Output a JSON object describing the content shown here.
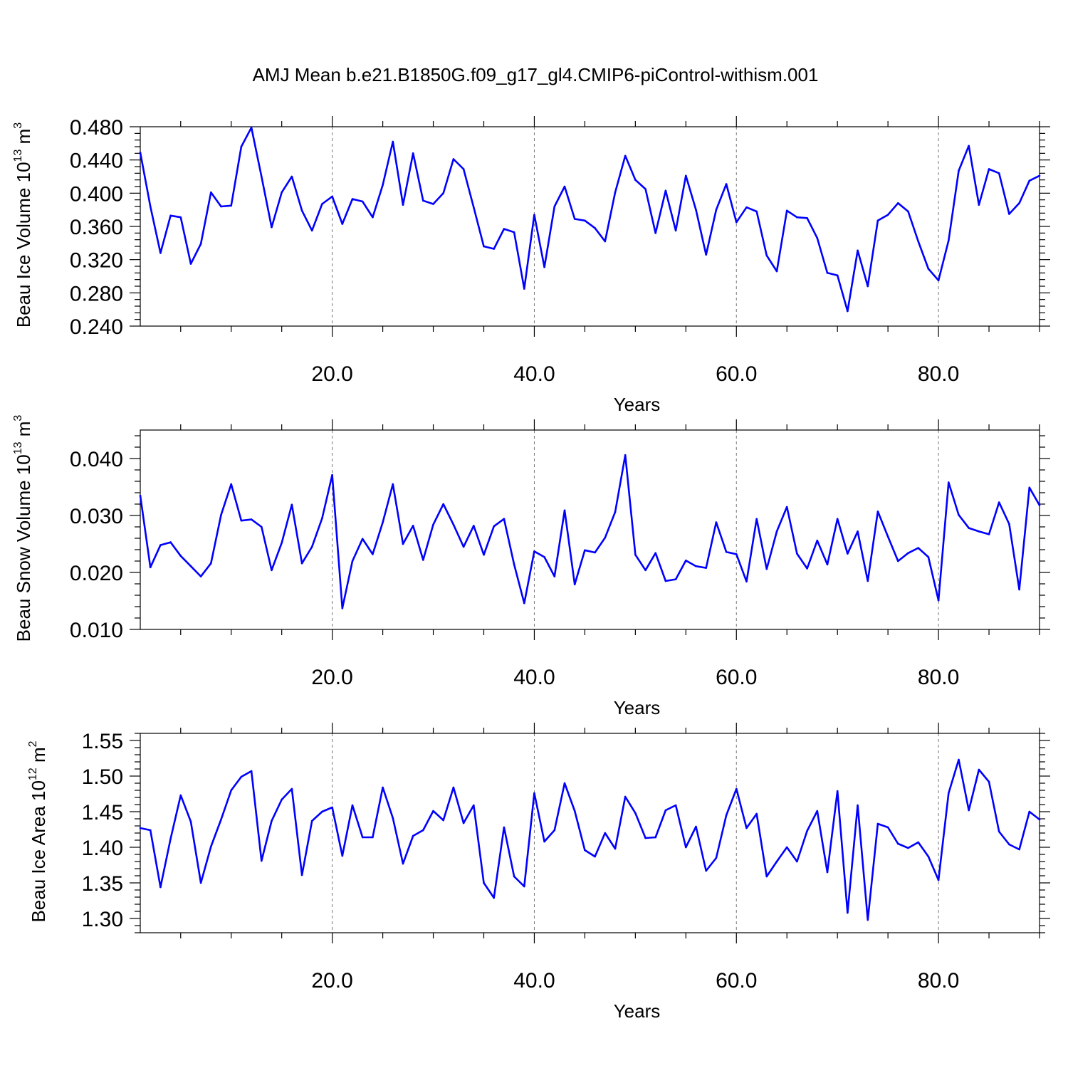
{
  "title": "AMJ Mean b.e21.B1850G.f09_g17_gl4.CMIP6-piControl-withism.001",
  "series_color": "#0000ff",
  "chart_data": [
    {
      "type": "line",
      "ylabel_text": "Beau Ice Volume 10",
      "ylabel_exp": "13",
      "ylabel_unit": " m",
      "ylabel_unit_exp": "3",
      "xlabel": "Years",
      "xlim": [
        1,
        90
      ],
      "ylim": [
        0.24,
        0.48
      ],
      "yticks": [
        0.24,
        0.28,
        0.32,
        0.36,
        0.4,
        0.44,
        0.48
      ],
      "ytick_labels": [
        "0.240",
        "0.280",
        "0.320",
        "0.360",
        "0.400",
        "0.440",
        "0.480"
      ],
      "xticks": [
        20,
        40,
        60,
        80
      ],
      "xtick_labels": [
        "20.0",
        "40.0",
        "60.0",
        "80.0"
      ],
      "grid_x": true,
      "x": [
        1,
        2,
        3,
        4,
        5,
        6,
        7,
        8,
        9,
        10,
        11,
        12,
        13,
        14,
        15,
        16,
        17,
        18,
        19,
        20,
        21,
        22,
        23,
        24,
        25,
        26,
        27,
        28,
        29,
        30,
        31,
        32,
        33,
        34,
        35,
        36,
        37,
        38,
        39,
        40,
        41,
        42,
        43,
        44,
        45,
        46,
        47,
        48,
        49,
        50,
        51,
        52,
        53,
        54,
        55,
        56,
        57,
        58,
        59,
        60,
        61,
        62,
        63,
        64,
        65,
        66,
        67,
        68,
        69,
        70,
        71,
        72,
        73,
        74,
        75,
        76,
        77,
        78,
        79,
        80,
        81,
        82,
        83,
        84,
        85,
        86,
        87,
        88,
        89,
        90
      ],
      "values": [
        0.449,
        0.384,
        0.328,
        0.373,
        0.371,
        0.315,
        0.339,
        0.401,
        0.384,
        0.385,
        0.456,
        0.479,
        0.42,
        0.359,
        0.401,
        0.42,
        0.379,
        0.355,
        0.387,
        0.396,
        0.363,
        0.393,
        0.39,
        0.371,
        0.41,
        0.462,
        0.386,
        0.448,
        0.391,
        0.387,
        0.4,
        0.441,
        0.429,
        0.383,
        0.336,
        0.333,
        0.357,
        0.353,
        0.285,
        0.374,
        0.311,
        0.384,
        0.408,
        0.369,
        0.367,
        0.358,
        0.342,
        0.401,
        0.445,
        0.416,
        0.405,
        0.352,
        0.403,
        0.355,
        0.421,
        0.38,
        0.326,
        0.38,
        0.411,
        0.365,
        0.383,
        0.378,
        0.325,
        0.306,
        0.379,
        0.371,
        0.37,
        0.346,
        0.304,
        0.301,
        0.258,
        0.331,
        0.288,
        0.367,
        0.374,
        0.388,
        0.378,
        0.342,
        0.309,
        0.295,
        0.343,
        0.427,
        0.457,
        0.386,
        0.429,
        0.424,
        0.375,
        0.388,
        0.415,
        0.421
      ]
    },
    {
      "type": "line",
      "ylabel_text": "Beau Snow Volume 10",
      "ylabel_exp": "13",
      "ylabel_unit": " m",
      "ylabel_unit_exp": "3",
      "xlabel": "Years",
      "xlim": [
        1,
        90
      ],
      "ylim": [
        0.01,
        0.045
      ],
      "yticks": [
        0.01,
        0.02,
        0.03,
        0.04
      ],
      "ytick_labels": [
        "0.010",
        "0.020",
        "0.030",
        "0.040"
      ],
      "xticks": [
        20,
        40,
        60,
        80
      ],
      "xtick_labels": [
        "20.0",
        "40.0",
        "60.0",
        "80.0"
      ],
      "grid_x": true,
      "x": [
        1,
        2,
        3,
        4,
        5,
        6,
        7,
        8,
        9,
        10,
        11,
        12,
        13,
        14,
        15,
        16,
        17,
        18,
        19,
        20,
        21,
        22,
        23,
        24,
        25,
        26,
        27,
        28,
        29,
        30,
        31,
        32,
        33,
        34,
        35,
        36,
        37,
        38,
        39,
        40,
        41,
        42,
        43,
        44,
        45,
        46,
        47,
        48,
        49,
        50,
        51,
        52,
        53,
        54,
        55,
        56,
        57,
        58,
        59,
        60,
        61,
        62,
        63,
        64,
        65,
        66,
        67,
        68,
        69,
        70,
        71,
        72,
        73,
        74,
        75,
        76,
        77,
        78,
        79,
        80,
        81,
        82,
        83,
        84,
        85,
        86,
        87,
        88,
        89,
        90
      ],
      "values": [
        0.0335,
        0.0209,
        0.0248,
        0.0253,
        0.0229,
        0.0211,
        0.0193,
        0.0216,
        0.0301,
        0.0355,
        0.0291,
        0.0293,
        0.028,
        0.0204,
        0.0252,
        0.0319,
        0.0216,
        0.0245,
        0.0295,
        0.0371,
        0.0137,
        0.022,
        0.0259,
        0.0232,
        0.0288,
        0.0355,
        0.025,
        0.0282,
        0.0222,
        0.0284,
        0.032,
        0.0284,
        0.0245,
        0.0282,
        0.0231,
        0.0281,
        0.0294,
        0.0214,
        0.0146,
        0.0237,
        0.0227,
        0.0193,
        0.0309,
        0.0179,
        0.0239,
        0.0235,
        0.0261,
        0.0306,
        0.0406,
        0.0231,
        0.0204,
        0.0234,
        0.0185,
        0.0188,
        0.0221,
        0.0211,
        0.0208,
        0.0288,
        0.0236,
        0.0232,
        0.0184,
        0.0294,
        0.0206,
        0.0272,
        0.0315,
        0.0233,
        0.0207,
        0.0256,
        0.0214,
        0.0294,
        0.0233,
        0.0272,
        0.0185,
        0.0307,
        0.0263,
        0.022,
        0.0234,
        0.0243,
        0.0227,
        0.0151,
        0.0358,
        0.0301,
        0.0278,
        0.0272,
        0.0267,
        0.0323,
        0.0285,
        0.017,
        0.0349,
        0.0318
      ]
    },
    {
      "type": "line",
      "ylabel_text": "Beau Ice Area 10",
      "ylabel_exp": "12",
      "ylabel_unit": " m",
      "ylabel_unit_exp": "2",
      "xlabel": "Years",
      "xlim": [
        1,
        90
      ],
      "ylim": [
        1.28,
        1.56
      ],
      "yticks": [
        1.3,
        1.35,
        1.4,
        1.45,
        1.5,
        1.55
      ],
      "ytick_labels": [
        "1.30",
        "1.35",
        "1.40",
        "1.45",
        "1.50",
        "1.55"
      ],
      "xticks": [
        20,
        40,
        60,
        80
      ],
      "xtick_labels": [
        "20.0",
        "40.0",
        "60.0",
        "80.0"
      ],
      "grid_x": true,
      "x": [
        1,
        2,
        3,
        4,
        5,
        6,
        7,
        8,
        9,
        10,
        11,
        12,
        13,
        14,
        15,
        16,
        17,
        18,
        19,
        20,
        21,
        22,
        23,
        24,
        25,
        26,
        27,
        28,
        29,
        30,
        31,
        32,
        33,
        34,
        35,
        36,
        37,
        38,
        39,
        40,
        41,
        42,
        43,
        44,
        45,
        46,
        47,
        48,
        49,
        50,
        51,
        52,
        53,
        54,
        55,
        56,
        57,
        58,
        59,
        60,
        61,
        62,
        63,
        64,
        65,
        66,
        67,
        68,
        69,
        70,
        71,
        72,
        73,
        74,
        75,
        76,
        77,
        78,
        79,
        80,
        81,
        82,
        83,
        84,
        85,
        86,
        87,
        88,
        89,
        90
      ],
      "values": [
        1.427,
        1.424,
        1.344,
        1.412,
        1.473,
        1.436,
        1.35,
        1.401,
        1.439,
        1.48,
        1.499,
        1.507,
        1.381,
        1.437,
        1.467,
        1.482,
        1.361,
        1.437,
        1.45,
        1.456,
        1.388,
        1.459,
        1.414,
        1.414,
        1.484,
        1.441,
        1.377,
        1.416,
        1.424,
        1.451,
        1.438,
        1.484,
        1.434,
        1.459,
        1.35,
        1.329,
        1.428,
        1.359,
        1.345,
        1.476,
        1.408,
        1.424,
        1.49,
        1.451,
        1.396,
        1.387,
        1.42,
        1.398,
        1.471,
        1.448,
        1.413,
        1.414,
        1.452,
        1.459,
        1.4,
        1.429,
        1.367,
        1.385,
        1.445,
        1.482,
        1.427,
        1.447,
        1.359,
        1.38,
        1.4,
        1.38,
        1.423,
        1.451,
        1.365,
        1.479,
        1.308,
        1.459,
        1.298,
        1.433,
        1.428,
        1.405,
        1.399,
        1.407,
        1.387,
        1.354,
        1.476,
        1.523,
        1.452,
        1.509,
        1.492,
        1.422,
        1.404,
        1.397,
        1.45,
        1.439
      ]
    }
  ]
}
